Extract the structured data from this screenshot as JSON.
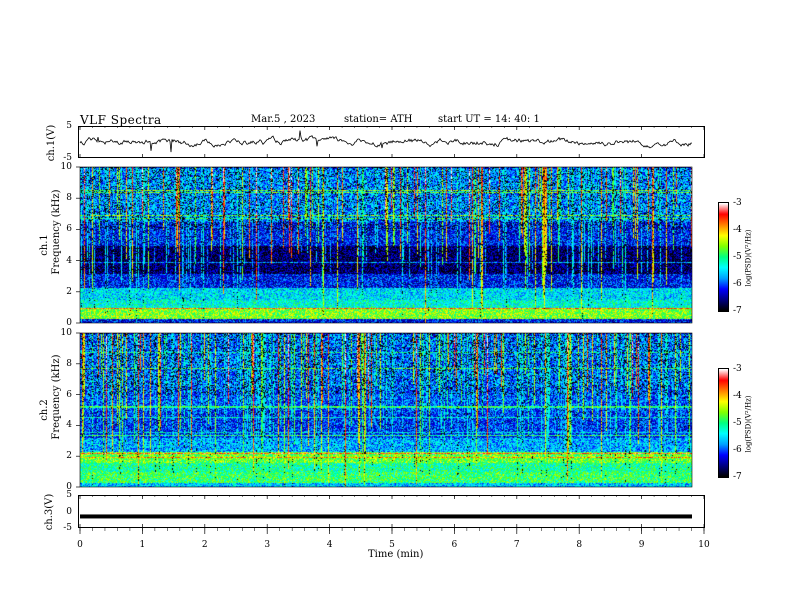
{
  "header": {
    "title": "VLF  Spectra",
    "date": "Mar.5  , 2023",
    "station": "station= ATH",
    "start": "start  UT  =   14: 40: 1"
  },
  "chart_data": [
    {
      "type": "line",
      "panel": "ch1-waveform",
      "ylabel": "ch.1(V)",
      "xlim": [
        0,
        10
      ],
      "ylim": [
        -5,
        5
      ],
      "y_ticks": [
        "5",
        "-5"
      ],
      "description_level": 0,
      "noise_amplitude": 0.6
    },
    {
      "type": "heatmap",
      "panel": "ch1-spectrogram",
      "ylabel_line1": "ch.1",
      "ylabel_line2": "Frequency  (kHz)",
      "xlim": [
        0,
        9.8
      ],
      "ylim": [
        0,
        10
      ],
      "y_ticks": [
        "0",
        "2",
        "4",
        "6",
        "8",
        "10"
      ],
      "colorbar": {
        "label": "log(PSD)(V²/Hz)",
        "range": [
          -7,
          -3
        ],
        "ticks": [
          "-3",
          "-4",
          "-5",
          "-6",
          "-7"
        ]
      },
      "band_levels_by_khz": [
        {
          "from": 0.0,
          "to": 0.3,
          "level": -6.2
        },
        {
          "from": 0.3,
          "to": 1.0,
          "level": -4.6
        },
        {
          "from": 1.0,
          "to": 1.5,
          "level": -5.3
        },
        {
          "from": 1.5,
          "to": 2.3,
          "level": -5.5
        },
        {
          "from": 2.3,
          "to": 3.2,
          "level": -6.2
        },
        {
          "from": 3.2,
          "to": 5.0,
          "level": -6.7
        },
        {
          "from": 5.0,
          "to": 6.5,
          "level": -6.2
        },
        {
          "from": 6.5,
          "to": 10.0,
          "level": -5.8
        }
      ]
    },
    {
      "type": "heatmap",
      "panel": "ch2-spectrogram",
      "ylabel_line1": "ch.2",
      "ylabel_line2": "Frequency  (kHz)",
      "xlim": [
        0,
        9.8
      ],
      "ylim": [
        0,
        10
      ],
      "y_ticks": [
        "0",
        "2",
        "4",
        "6",
        "8",
        "10"
      ],
      "colorbar": {
        "label": "log(PSD)(V²/Hz)",
        "range": [
          -7,
          -3
        ],
        "ticks": [
          "-3",
          "-4",
          "-5",
          "-6",
          "-7"
        ]
      },
      "band_levels_by_khz": [
        {
          "from": 0.0,
          "to": 0.3,
          "level": -5.6
        },
        {
          "from": 0.3,
          "to": 1.0,
          "level": -4.9
        },
        {
          "from": 1.0,
          "to": 1.6,
          "level": -5.1
        },
        {
          "from": 1.6,
          "to": 2.3,
          "level": -4.7
        },
        {
          "from": 2.3,
          "to": 3.2,
          "level": -5.7
        },
        {
          "from": 3.2,
          "to": 5.0,
          "level": -6.1
        },
        {
          "from": 5.0,
          "to": 6.5,
          "level": -6.0
        },
        {
          "from": 6.5,
          "to": 10.0,
          "level": -5.9
        }
      ]
    },
    {
      "type": "line",
      "panel": "ch3-waveform",
      "ylabel": "ch.3(V)",
      "xlim": [
        0,
        10
      ],
      "ylim": [
        -5,
        5
      ],
      "y_ticks": [
        "5",
        "0",
        "-5"
      ],
      "level": -1.5
    }
  ],
  "xaxis": {
    "label": "Time  (min)",
    "ticks": [
      "0",
      "1",
      "2",
      "3",
      "4",
      "5",
      "6",
      "7",
      "8",
      "9",
      "10"
    ]
  },
  "colors": {
    "colormap": [
      "#000000",
      "#000080",
      "#0000ff",
      "#00a0ff",
      "#00ffff",
      "#00ff80",
      "#80ff00",
      "#ffff00",
      "#ff8000",
      "#ff0000",
      "#ffffff"
    ]
  }
}
